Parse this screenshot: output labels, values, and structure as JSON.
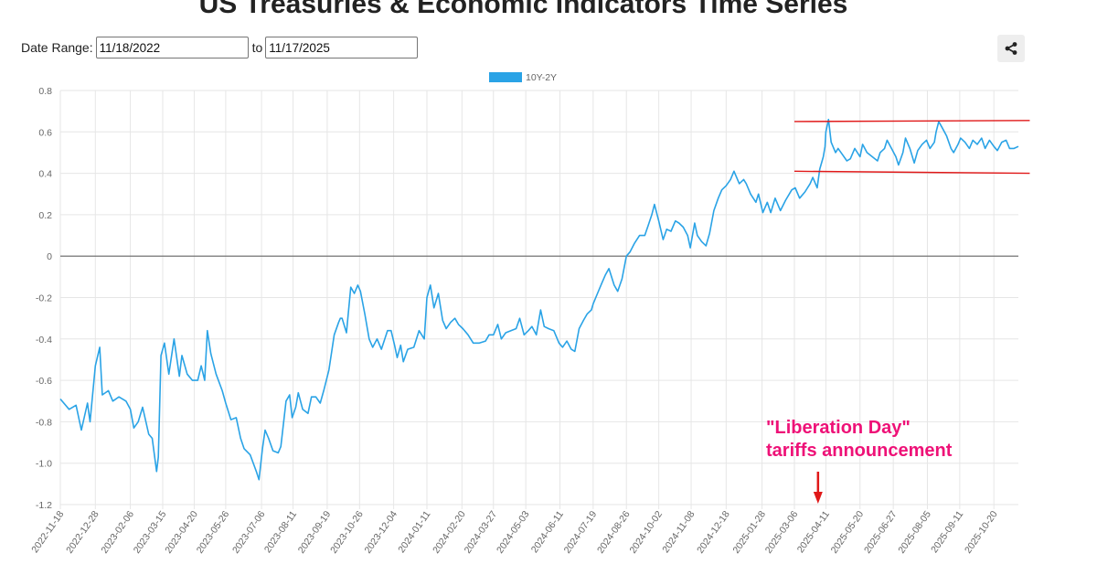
{
  "header": {
    "title": "US Treasuries & Economic Indicators Time Series"
  },
  "controls": {
    "date_range_label": "Date Range:",
    "start_date": "11/18/2022",
    "to_label": "to",
    "end_date": "11/17/2025"
  },
  "share_icon": "share-icon",
  "colors": {
    "series": "#2aa3e6",
    "zero_line": "#666666",
    "channel": "#e01818",
    "annotation": "#ee1177",
    "arrow": "#e01818",
    "grid": "#e6e6e6"
  },
  "chart_data": {
    "type": "line",
    "title": "",
    "legend": {
      "position": "top-center",
      "entries": [
        "10Y-2Y"
      ]
    },
    "ylim": [
      -1.2,
      0.8
    ],
    "yticks": [
      0.8,
      0.6,
      0.4,
      0.2,
      0,
      -0.2,
      -0.4,
      -0.6,
      -0.8,
      -1.0,
      -1.2
    ],
    "ytick_labels": [
      "0.8",
      "0.6",
      "0.4",
      "0.2",
      "0",
      "-0.2",
      "-0.4",
      "-0.6",
      "-0.8",
      "-1.0",
      "-1.2"
    ],
    "xlim": [
      "2022-11-18",
      "2025-11-17"
    ],
    "xtick_labels": [
      "2022-11-18",
      "2022-12-28",
      "2023-02-06",
      "2023-03-15",
      "2023-04-20",
      "2023-05-26",
      "2023-07-06",
      "2023-08-11",
      "2023-09-19",
      "2023-10-26",
      "2023-12-04",
      "2024-01-11",
      "2024-02-20",
      "2024-03-27",
      "2024-05-03",
      "2024-06-11",
      "2024-07-19",
      "2024-08-26",
      "2024-10-02",
      "2024-11-08",
      "2024-12-18",
      "2025-01-28",
      "2025-03-06",
      "2025-04-11",
      "2025-05-20",
      "2025-06-27",
      "2025-08-05",
      "2025-09-11",
      "2025-10-20"
    ],
    "grid": true,
    "reference_line": {
      "y": 0
    },
    "series": [
      {
        "name": "10Y-2Y",
        "points": [
          [
            "2022-11-18",
            -0.69
          ],
          [
            "2022-11-28",
            -0.74
          ],
          [
            "2022-12-06",
            -0.72
          ],
          [
            "2022-12-12",
            -0.84
          ],
          [
            "2022-12-19",
            -0.71
          ],
          [
            "2022-12-22",
            -0.8
          ],
          [
            "2022-12-28",
            -0.53
          ],
          [
            "2023-01-02",
            -0.44
          ],
          [
            "2023-01-05",
            -0.67
          ],
          [
            "2023-01-12",
            -0.65
          ],
          [
            "2023-01-17",
            -0.7
          ],
          [
            "2023-01-24",
            -0.68
          ],
          [
            "2023-02-01",
            -0.7
          ],
          [
            "2023-02-06",
            -0.74
          ],
          [
            "2023-02-10",
            -0.83
          ],
          [
            "2023-02-15",
            -0.8
          ],
          [
            "2023-02-20",
            -0.73
          ],
          [
            "2023-02-27",
            -0.86
          ],
          [
            "2023-03-03",
            -0.88
          ],
          [
            "2023-03-08",
            -1.04
          ],
          [
            "2023-03-10",
            -0.97
          ],
          [
            "2023-03-13",
            -0.48
          ],
          [
            "2023-03-17",
            -0.42
          ],
          [
            "2023-03-22",
            -0.57
          ],
          [
            "2023-03-28",
            -0.4
          ],
          [
            "2023-04-03",
            -0.58
          ],
          [
            "2023-04-06",
            -0.48
          ],
          [
            "2023-04-12",
            -0.57
          ],
          [
            "2023-04-18",
            -0.6
          ],
          [
            "2023-04-24",
            -0.6
          ],
          [
            "2023-04-28",
            -0.53
          ],
          [
            "2023-05-02",
            -0.6
          ],
          [
            "2023-05-05",
            -0.36
          ],
          [
            "2023-05-09",
            -0.47
          ],
          [
            "2023-05-15",
            -0.57
          ],
          [
            "2023-05-22",
            -0.65
          ],
          [
            "2023-05-26",
            -0.71
          ],
          [
            "2023-06-01",
            -0.79
          ],
          [
            "2023-06-07",
            -0.78
          ],
          [
            "2023-06-12",
            -0.88
          ],
          [
            "2023-06-16",
            -0.93
          ],
          [
            "2023-06-23",
            -0.96
          ],
          [
            "2023-06-30",
            -1.04
          ],
          [
            "2023-07-03",
            -1.08
          ],
          [
            "2023-07-07",
            -0.93
          ],
          [
            "2023-07-10",
            -0.84
          ],
          [
            "2023-07-14",
            -0.88
          ],
          [
            "2023-07-19",
            -0.94
          ],
          [
            "2023-07-25",
            -0.95
          ],
          [
            "2023-07-28",
            -0.92
          ],
          [
            "2023-08-03",
            -0.7
          ],
          [
            "2023-08-07",
            -0.67
          ],
          [
            "2023-08-10",
            -0.78
          ],
          [
            "2023-08-14",
            -0.73
          ],
          [
            "2023-08-17",
            -0.66
          ],
          [
            "2023-08-22",
            -0.74
          ],
          [
            "2023-08-28",
            -0.76
          ],
          [
            "2023-09-01",
            -0.68
          ],
          [
            "2023-09-06",
            -0.68
          ],
          [
            "2023-09-11",
            -0.71
          ],
          [
            "2023-09-15",
            -0.65
          ],
          [
            "2023-09-21",
            -0.55
          ],
          [
            "2023-09-27",
            -0.38
          ],
          [
            "2023-10-02",
            -0.32
          ],
          [
            "2023-10-04",
            -0.3
          ],
          [
            "2023-10-06",
            -0.3
          ],
          [
            "2023-10-11",
            -0.37
          ],
          [
            "2023-10-16",
            -0.15
          ],
          [
            "2023-10-20",
            -0.18
          ],
          [
            "2023-10-24",
            -0.14
          ],
          [
            "2023-10-27",
            -0.17
          ],
          [
            "2023-11-01",
            -0.28
          ],
          [
            "2023-11-06",
            -0.4
          ],
          [
            "2023-11-10",
            -0.44
          ],
          [
            "2023-11-15",
            -0.4
          ],
          [
            "2023-11-20",
            -0.45
          ],
          [
            "2023-11-27",
            -0.36
          ],
          [
            "2023-12-01",
            -0.36
          ],
          [
            "2023-12-05",
            -0.43
          ],
          [
            "2023-12-08",
            -0.49
          ],
          [
            "2023-12-12",
            -0.43
          ],
          [
            "2023-12-15",
            -0.51
          ],
          [
            "2023-12-20",
            -0.45
          ],
          [
            "2023-12-27",
            -0.44
          ],
          [
            "2024-01-02",
            -0.36
          ],
          [
            "2024-01-08",
            -0.4
          ],
          [
            "2024-01-11",
            -0.2
          ],
          [
            "2024-01-15",
            -0.14
          ],
          [
            "2024-01-19",
            -0.25
          ],
          [
            "2024-01-24",
            -0.18
          ],
          [
            "2024-01-29",
            -0.31
          ],
          [
            "2024-02-02",
            -0.35
          ],
          [
            "2024-02-07",
            -0.32
          ],
          [
            "2024-02-12",
            -0.3
          ],
          [
            "2024-02-16",
            -0.33
          ],
          [
            "2024-02-21",
            -0.35
          ],
          [
            "2024-02-27",
            -0.38
          ],
          [
            "2024-03-04",
            -0.42
          ],
          [
            "2024-03-11",
            -0.42
          ],
          [
            "2024-03-18",
            -0.41
          ],
          [
            "2024-03-22",
            -0.38
          ],
          [
            "2024-03-27",
            -0.38
          ],
          [
            "2024-04-01",
            -0.33
          ],
          [
            "2024-04-05",
            -0.4
          ],
          [
            "2024-04-10",
            -0.37
          ],
          [
            "2024-04-16",
            -0.36
          ],
          [
            "2024-04-22",
            -0.35
          ],
          [
            "2024-04-26",
            -0.3
          ],
          [
            "2024-05-01",
            -0.38
          ],
          [
            "2024-05-06",
            -0.36
          ],
          [
            "2024-05-10",
            -0.34
          ],
          [
            "2024-05-15",
            -0.38
          ],
          [
            "2024-05-20",
            -0.26
          ],
          [
            "2024-05-24",
            -0.34
          ],
          [
            "2024-05-29",
            -0.35
          ],
          [
            "2024-06-04",
            -0.36
          ],
          [
            "2024-06-10",
            -0.42
          ],
          [
            "2024-06-14",
            -0.44
          ],
          [
            "2024-06-19",
            -0.41
          ],
          [
            "2024-06-24",
            -0.45
          ],
          [
            "2024-06-28",
            -0.46
          ],
          [
            "2024-07-03",
            -0.35
          ],
          [
            "2024-07-08",
            -0.31
          ],
          [
            "2024-07-12",
            -0.28
          ],
          [
            "2024-07-17",
            -0.26
          ],
          [
            "2024-07-19",
            -0.23
          ],
          [
            "2024-07-24",
            -0.18
          ],
          [
            "2024-07-29",
            -0.13
          ],
          [
            "2024-08-02",
            -0.09
          ],
          [
            "2024-08-06",
            -0.06
          ],
          [
            "2024-08-12",
            -0.14
          ],
          [
            "2024-08-16",
            -0.17
          ],
          [
            "2024-08-21",
            -0.11
          ],
          [
            "2024-08-26",
            0.0
          ],
          [
            "2024-08-30",
            0.02
          ],
          [
            "2024-09-04",
            0.06
          ],
          [
            "2024-09-10",
            0.1
          ],
          [
            "2024-09-16",
            0.1
          ],
          [
            "2024-09-20",
            0.15
          ],
          [
            "2024-09-24",
            0.2
          ],
          [
            "2024-09-27",
            0.25
          ],
          [
            "2024-10-02",
            0.17
          ],
          [
            "2024-10-07",
            0.08
          ],
          [
            "2024-10-11",
            0.13
          ],
          [
            "2024-10-16",
            0.12
          ],
          [
            "2024-10-21",
            0.17
          ],
          [
            "2024-10-25",
            0.16
          ],
          [
            "2024-10-30",
            0.14
          ],
          [
            "2024-11-04",
            0.1
          ],
          [
            "2024-11-07",
            0.04
          ],
          [
            "2024-11-12",
            0.16
          ],
          [
            "2024-11-15",
            0.1
          ],
          [
            "2024-11-20",
            0.07
          ],
          [
            "2024-11-25",
            0.05
          ],
          [
            "2024-11-29",
            0.11
          ],
          [
            "2024-12-04",
            0.22
          ],
          [
            "2024-12-09",
            0.28
          ],
          [
            "2024-12-13",
            0.32
          ],
          [
            "2024-12-18",
            0.34
          ],
          [
            "2024-12-23",
            0.37
          ],
          [
            "2024-12-27",
            0.41
          ],
          [
            "2025-01-02",
            0.35
          ],
          [
            "2025-01-07",
            0.37
          ],
          [
            "2025-01-10",
            0.35
          ],
          [
            "2025-01-15",
            0.3
          ],
          [
            "2025-01-21",
            0.26
          ],
          [
            "2025-01-24",
            0.3
          ],
          [
            "2025-01-29",
            0.21
          ],
          [
            "2025-02-03",
            0.26
          ],
          [
            "2025-02-07",
            0.21
          ],
          [
            "2025-02-12",
            0.28
          ],
          [
            "2025-02-18",
            0.22
          ],
          [
            "2025-02-24",
            0.27
          ],
          [
            "2025-03-03",
            0.32
          ],
          [
            "2025-03-07",
            0.33
          ],
          [
            "2025-03-12",
            0.28
          ],
          [
            "2025-03-18",
            0.31
          ],
          [
            "2025-03-24",
            0.35
          ],
          [
            "2025-03-27",
            0.38
          ],
          [
            "2025-04-01",
            0.33
          ],
          [
            "2025-04-04",
            0.42
          ],
          [
            "2025-04-08",
            0.48
          ],
          [
            "2025-04-10",
            0.53
          ],
          [
            "2025-04-11",
            0.6
          ],
          [
            "2025-04-14",
            0.66
          ],
          [
            "2025-04-17",
            0.55
          ],
          [
            "2025-04-22",
            0.5
          ],
          [
            "2025-04-25",
            0.52
          ],
          [
            "2025-04-30",
            0.49
          ],
          [
            "2025-05-05",
            0.46
          ],
          [
            "2025-05-09",
            0.47
          ],
          [
            "2025-05-14",
            0.52
          ],
          [
            "2025-05-20",
            0.48
          ],
          [
            "2025-05-23",
            0.54
          ],
          [
            "2025-05-28",
            0.5
          ],
          [
            "2025-06-03",
            0.48
          ],
          [
            "2025-06-09",
            0.46
          ],
          [
            "2025-06-12",
            0.5
          ],
          [
            "2025-06-17",
            0.52
          ],
          [
            "2025-06-20",
            0.56
          ],
          [
            "2025-06-25",
            0.52
          ],
          [
            "2025-06-30",
            0.48
          ],
          [
            "2025-07-03",
            0.44
          ],
          [
            "2025-07-08",
            0.5
          ],
          [
            "2025-07-11",
            0.57
          ],
          [
            "2025-07-16",
            0.52
          ],
          [
            "2025-07-21",
            0.45
          ],
          [
            "2025-07-25",
            0.51
          ],
          [
            "2025-07-30",
            0.54
          ],
          [
            "2025-08-04",
            0.56
          ],
          [
            "2025-08-08",
            0.52
          ],
          [
            "2025-08-13",
            0.55
          ],
          [
            "2025-08-15",
            0.6
          ],
          [
            "2025-08-18",
            0.65
          ],
          [
            "2025-08-22",
            0.62
          ],
          [
            "2025-08-27",
            0.58
          ],
          [
            "2025-09-01",
            0.52
          ],
          [
            "2025-09-04",
            0.5
          ],
          [
            "2025-09-09",
            0.54
          ],
          [
            "2025-09-12",
            0.57
          ],
          [
            "2025-09-17",
            0.55
          ],
          [
            "2025-09-22",
            0.52
          ],
          [
            "2025-09-26",
            0.56
          ],
          [
            "2025-10-01",
            0.54
          ],
          [
            "2025-10-06",
            0.57
          ],
          [
            "2025-10-10",
            0.52
          ],
          [
            "2025-10-15",
            0.56
          ],
          [
            "2025-10-20",
            0.53
          ],
          [
            "2025-10-24",
            0.51
          ],
          [
            "2025-10-29",
            0.55
          ],
          [
            "2025-11-03",
            0.56
          ],
          [
            "2025-11-07",
            0.52
          ],
          [
            "2025-11-12",
            0.52
          ],
          [
            "2025-11-17",
            0.53
          ]
        ]
      }
    ],
    "overlays": {
      "channel_upper": {
        "from": [
          "2025-03-06",
          0.65
        ],
        "to": [
          "2025-11-30",
          0.655
        ]
      },
      "channel_lower": {
        "from": [
          "2025-03-06",
          0.41
        ],
        "to": [
          "2025-11-30",
          0.4
        ]
      }
    },
    "annotation": {
      "lines": [
        "\"Liberation Day\"",
        "tariffs announcement"
      ],
      "arrow_date": "2025-04-02"
    }
  }
}
